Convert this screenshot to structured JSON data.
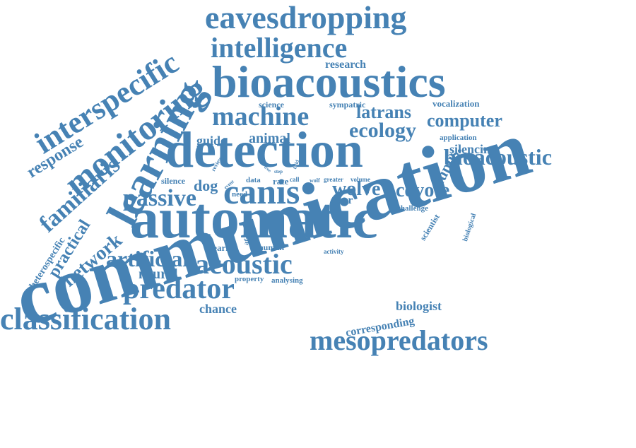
{
  "color": "#4682b4",
  "words": [
    "communication",
    "automatic",
    "detection",
    "bioacoustics",
    "eavesdropping",
    "intelligence",
    "learning",
    "monitoring",
    "interspecific",
    "machine",
    "classification",
    "mesopredators",
    "predator",
    "acoustic",
    "canis",
    "passive",
    "artificial",
    "familiaris",
    "network",
    "bioacoustic",
    "coyote",
    "ecology",
    "computer",
    "latrans",
    "wolve",
    "response",
    "practical",
    "neural",
    "lupus",
    "silencing",
    "animal",
    "guide",
    "dog",
    "research",
    "chance",
    "biologist",
    "corresponding",
    "heterospecific",
    "fear",
    "hearing",
    "human",
    "vocalization",
    "application",
    "scientist",
    "science",
    "sympatric",
    "silence",
    "rate",
    "need",
    "data",
    "challenge",
    "property",
    "analysing",
    "afraid",
    "volume",
    "greater",
    "biological",
    "activity",
    "call",
    "wolf",
    "review",
    "event",
    "step",
    "field",
    "true"
  ]
}
